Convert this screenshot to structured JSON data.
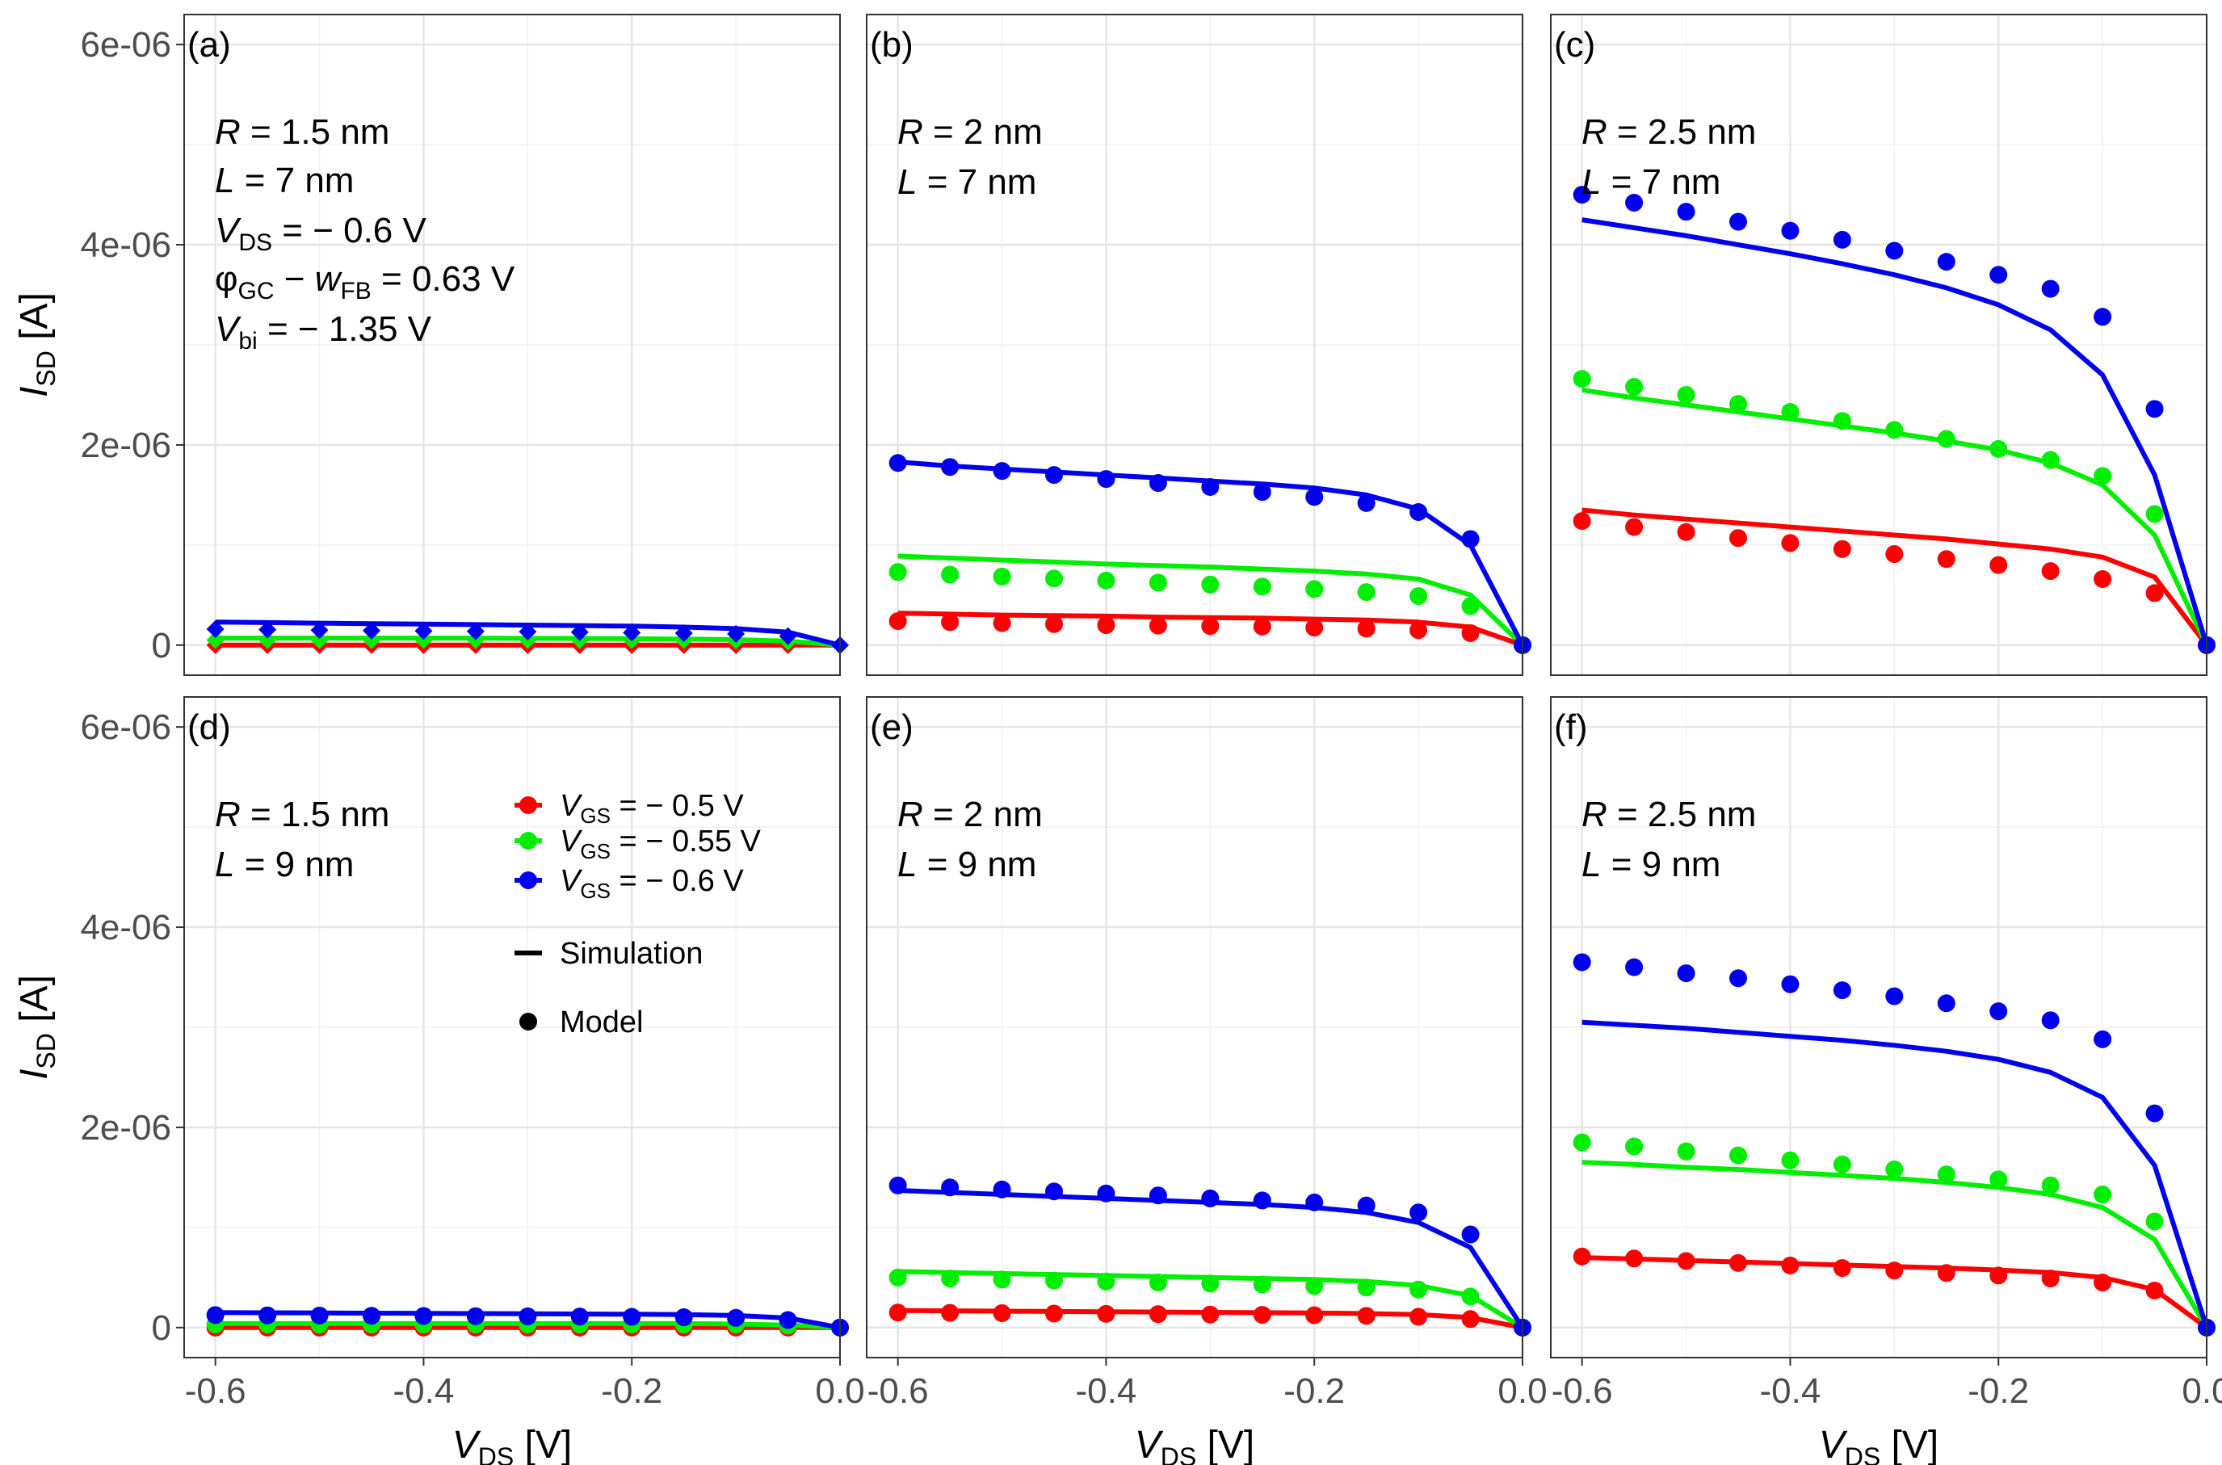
{
  "figure": {
    "x_axis_title": "V",
    "x_axis_sub": "DS",
    "x_axis_unit": " [V]",
    "y_axis_title": "I",
    "y_axis_sub": "SD",
    "y_axis_unit": " [A]",
    "x_ticks": [
      "-0.6",
      "-0.4",
      "-0.2",
      "0.0"
    ],
    "y_ticks": [
      "0",
      "2e-06",
      "4e-06",
      "6e-06"
    ]
  },
  "legend": {
    "entries": [
      {
        "prefix": "V",
        "sub": "GS",
        "label": " = − 0.5 V",
        "color": "#ff0000"
      },
      {
        "prefix": "V",
        "sub": "GS",
        "label": " = − 0.55 V",
        "color": "#00ee00"
      },
      {
        "prefix": "V",
        "sub": "GS",
        "label": " = − 0.6 V",
        "color": "#0000ee"
      }
    ],
    "simulation_label": "Simulation",
    "model_label": "Model"
  },
  "colors": {
    "red": "#ff0000",
    "green": "#00ee00",
    "blue": "#0000ee"
  },
  "chart_data": [
    {
      "panel": "(a)",
      "type": "line",
      "annotations": [
        {
          "sym": "R",
          "sub": "",
          "rest": " = 1.5 nm"
        },
        {
          "sym": "L",
          "sub": "",
          "rest": " = 7 nm"
        },
        {
          "sym": "V",
          "sub": "DS",
          "rest": " = − 0.6 V"
        },
        {
          "sym": "φ",
          "sub": "GC",
          "rest": " − ",
          "sym2": "w",
          "sub2": "FB",
          "rest2": " = 0.63 V"
        },
        {
          "sym": "V",
          "sub": "bi",
          "rest": " = − 1.35 V"
        }
      ],
      "xlim": [
        -0.63,
        0.0
      ],
      "ylim": [
        -3e-07,
        6.3e-06
      ],
      "marker": "diamond",
      "x": [
        -0.6,
        -0.55,
        -0.5,
        -0.45,
        -0.4,
        -0.35,
        -0.3,
        -0.25,
        -0.2,
        -0.15,
        -0.1,
        -0.05,
        0.0
      ],
      "series": [
        {
          "name": "V_GS = -0.5 V",
          "color": "red",
          "simulation": [
            0.0,
            0.0,
            0.0,
            0.0,
            0.0,
            0.0,
            0.0,
            0.0,
            0.0,
            0.0,
            0.0,
            0.0,
            0.0
          ],
          "model": [
            0.0,
            0.0,
            0.0,
            0.0,
            0.0,
            0.0,
            0.0,
            0.0,
            0.0,
            0.0,
            0.0,
            0.0,
            0.0
          ]
        },
        {
          "name": "V_GS = -0.55 V",
          "color": "green",
          "simulation": [
            7e-08,
            7e-08,
            7e-08,
            7e-08,
            7e-08,
            7e-08,
            6.8e-08,
            6.6e-08,
            6.4e-08,
            6e-08,
            5.5e-08,
            4e-08,
            0.0
          ],
          "model": [
            5e-08,
            5e-08,
            5e-08,
            5e-08,
            5e-08,
            5e-08,
            5e-08,
            5e-08,
            5e-08,
            5e-08,
            4.5e-08,
            3.5e-08,
            0.0
          ]
        },
        {
          "name": "V_GS = -0.6 V",
          "color": "blue",
          "simulation": [
            2.3e-07,
            2.25e-07,
            2.2e-07,
            2.15e-07,
            2.1e-07,
            2.05e-07,
            2e-07,
            1.95e-07,
            1.9e-07,
            1.8e-07,
            1.65e-07,
            1.3e-07,
            0.0
          ],
          "model": [
            1.6e-07,
            1.55e-07,
            1.5e-07,
            1.45e-07,
            1.42e-07,
            1.38e-07,
            1.35e-07,
            1.3e-07,
            1.25e-07,
            1.2e-07,
            1.12e-07,
            9e-08,
            0.0
          ]
        }
      ]
    },
    {
      "panel": "(b)",
      "type": "line",
      "annotations": [
        {
          "sym": "R",
          "sub": "",
          "rest": " = 2 nm"
        },
        {
          "sym": "L",
          "sub": "",
          "rest": " = 7 nm"
        }
      ],
      "xlim": [
        -0.63,
        0.0
      ],
      "ylim": [
        -3e-07,
        6.3e-06
      ],
      "marker": "circle",
      "x": [
        -0.6,
        -0.55,
        -0.5,
        -0.45,
        -0.4,
        -0.35,
        -0.3,
        -0.25,
        -0.2,
        -0.15,
        -0.1,
        -0.05,
        0.0
      ],
      "series": [
        {
          "name": "V_GS = -0.5 V",
          "color": "red",
          "simulation": [
            3.2e-07,
            3.1e-07,
            3e-07,
            2.95e-07,
            2.9e-07,
            2.8e-07,
            2.75e-07,
            2.7e-07,
            2.6e-07,
            2.5e-07,
            2.3e-07,
            1.8e-07,
            0.0
          ],
          "model": [
            2.4e-07,
            2.3e-07,
            2.2e-07,
            2.1e-07,
            2e-07,
            1.95e-07,
            1.9e-07,
            1.85e-07,
            1.75e-07,
            1.65e-07,
            1.5e-07,
            1.2e-07,
            0.0
          ]
        },
        {
          "name": "V_GS = -0.55 V",
          "color": "green",
          "simulation": [
            8.9e-07,
            8.7e-07,
            8.5e-07,
            8.3e-07,
            8.1e-07,
            7.95e-07,
            7.8e-07,
            7.6e-07,
            7.4e-07,
            7.1e-07,
            6.6e-07,
            5e-07,
            0.0
          ],
          "model": [
            7.3e-07,
            7.05e-07,
            6.85e-07,
            6.65e-07,
            6.45e-07,
            6.25e-07,
            6.05e-07,
            5.85e-07,
            5.6e-07,
            5.3e-07,
            4.9e-07,
            3.9e-07,
            0.0
          ]
        },
        {
          "name": "V_GS = -0.6 V",
          "color": "blue",
          "simulation": [
            1.83e-06,
            1.79e-06,
            1.76e-06,
            1.73e-06,
            1.7e-06,
            1.67e-06,
            1.64e-06,
            1.61e-06,
            1.57e-06,
            1.5e-06,
            1.36e-06,
            1e-06,
            0.0
          ],
          "model": [
            1.82e-06,
            1.78e-06,
            1.74e-06,
            1.7e-06,
            1.66e-06,
            1.62e-06,
            1.58e-06,
            1.53e-06,
            1.48e-06,
            1.42e-06,
            1.33e-06,
            1.06e-06,
            0.0
          ]
        }
      ]
    },
    {
      "panel": "(c)",
      "type": "line",
      "annotations": [
        {
          "sym": "R",
          "sub": "",
          "rest": " = 2.5 nm"
        },
        {
          "sym": "L",
          "sub": "",
          "rest": " = 7 nm"
        }
      ],
      "xlim": [
        -0.63,
        0.0
      ],
      "ylim": [
        -3e-07,
        6.3e-06
      ],
      "marker": "circle",
      "x": [
        -0.6,
        -0.55,
        -0.5,
        -0.45,
        -0.4,
        -0.35,
        -0.3,
        -0.25,
        -0.2,
        -0.15,
        -0.1,
        -0.05,
        0.0
      ],
      "series": [
        {
          "name": "V_GS = -0.5 V",
          "color": "red",
          "simulation": [
            1.35e-06,
            1.3e-06,
            1.26e-06,
            1.22e-06,
            1.18e-06,
            1.14e-06,
            1.1e-06,
            1.06e-06,
            1.01e-06,
            9.6e-07,
            8.8e-07,
            6.8e-07,
            0.0
          ],
          "model": [
            1.24e-06,
            1.18e-06,
            1.13e-06,
            1.07e-06,
            1.02e-06,
            9.6e-07,
            9.1e-07,
            8.6e-07,
            8e-07,
            7.4e-07,
            6.6e-07,
            5.2e-07,
            0.0
          ]
        },
        {
          "name": "V_GS = -0.55 V",
          "color": "green",
          "simulation": [
            2.55e-06,
            2.47e-06,
            2.4e-06,
            2.33e-06,
            2.26e-06,
            2.19e-06,
            2.12e-06,
            2.04e-06,
            1.95e-06,
            1.82e-06,
            1.6e-06,
            1.1e-06,
            0.0
          ],
          "model": [
            2.66e-06,
            2.58e-06,
            2.5e-06,
            2.41e-06,
            2.33e-06,
            2.24e-06,
            2.15e-06,
            2.06e-06,
            1.96e-06,
            1.85e-06,
            1.69e-06,
            1.31e-06,
            0.0
          ]
        },
        {
          "name": "V_GS = -0.6 V",
          "color": "blue",
          "simulation": [
            4.25e-06,
            4.17e-06,
            4.09e-06,
            4e-06,
            3.91e-06,
            3.81e-06,
            3.7e-06,
            3.57e-06,
            3.4e-06,
            3.15e-06,
            2.7e-06,
            1.7e-06,
            0.0
          ],
          "model": [
            4.5e-06,
            4.42e-06,
            4.33e-06,
            4.23e-06,
            4.14e-06,
            4.05e-06,
            3.94e-06,
            3.83e-06,
            3.7e-06,
            3.56e-06,
            3.28e-06,
            2.36e-06,
            0.0
          ]
        }
      ]
    },
    {
      "panel": "(d)",
      "type": "line",
      "annotations": [
        {
          "sym": "R",
          "sub": "",
          "rest": " = 1.5 nm"
        },
        {
          "sym": "L",
          "sub": "",
          "rest": " = 9 nm"
        }
      ],
      "xlim": [
        -0.63,
        0.0
      ],
      "ylim": [
        -3e-07,
        6.3e-06
      ],
      "marker": "circle",
      "x": [
        -0.6,
        -0.55,
        -0.5,
        -0.45,
        -0.4,
        -0.35,
        -0.3,
        -0.25,
        -0.2,
        -0.15,
        -0.1,
        -0.05,
        0.0
      ],
      "series": [
        {
          "name": "V_GS = -0.5 V",
          "color": "red",
          "simulation": [
            0.0,
            0.0,
            0.0,
            0.0,
            0.0,
            0.0,
            0.0,
            0.0,
            0.0,
            0.0,
            0.0,
            0.0,
            0.0
          ],
          "model": [
            0.0,
            0.0,
            0.0,
            0.0,
            0.0,
            0.0,
            0.0,
            0.0,
            0.0,
            0.0,
            0.0,
            0.0,
            0.0
          ]
        },
        {
          "name": "V_GS = -0.55 V",
          "color": "green",
          "simulation": [
            4e-08,
            4e-08,
            4e-08,
            4e-08,
            4e-08,
            4e-08,
            4e-08,
            4e-08,
            4e-08,
            4e-08,
            3.5e-08,
            2.5e-08,
            0.0
          ],
          "model": [
            3e-08,
            3e-08,
            3e-08,
            3e-08,
            3e-08,
            3e-08,
            3e-08,
            3e-08,
            3e-08,
            3e-08,
            3e-08,
            2e-08,
            0.0
          ]
        },
        {
          "name": "V_GS = -0.6 V",
          "color": "blue",
          "simulation": [
            1.5e-07,
            1.48e-07,
            1.46e-07,
            1.44e-07,
            1.42e-07,
            1.4e-07,
            1.38e-07,
            1.36e-07,
            1.33e-07,
            1.29e-07,
            1.2e-07,
            9.5e-08,
            0.0
          ],
          "model": [
            1.25e-07,
            1.22e-07,
            1.2e-07,
            1.18e-07,
            1.16e-07,
            1.14e-07,
            1.12e-07,
            1.1e-07,
            1.07e-07,
            1.03e-07,
            9.7e-08,
            7.5e-08,
            0.0
          ]
        }
      ]
    },
    {
      "panel": "(e)",
      "type": "line",
      "annotations": [
        {
          "sym": "R",
          "sub": "",
          "rest": " = 2 nm"
        },
        {
          "sym": "L",
          "sub": "",
          "rest": " = 9 nm"
        }
      ],
      "xlim": [
        -0.63,
        0.0
      ],
      "ylim": [
        -3e-07,
        6.3e-06
      ],
      "marker": "circle",
      "x": [
        -0.6,
        -0.55,
        -0.5,
        -0.45,
        -0.4,
        -0.35,
        -0.3,
        -0.25,
        -0.2,
        -0.15,
        -0.1,
        -0.05,
        0.0
      ],
      "series": [
        {
          "name": "V_GS = -0.5 V",
          "color": "red",
          "simulation": [
            1.7e-07,
            1.67e-07,
            1.64e-07,
            1.61e-07,
            1.58e-07,
            1.55e-07,
            1.52e-07,
            1.49e-07,
            1.45e-07,
            1.4e-07,
            1.3e-07,
            1e-07,
            0.0
          ],
          "model": [
            1.5e-07,
            1.47e-07,
            1.44e-07,
            1.4e-07,
            1.37e-07,
            1.34e-07,
            1.3e-07,
            1.27e-07,
            1.23e-07,
            1.17e-07,
            1.08e-07,
            8.5e-08,
            0.0
          ]
        },
        {
          "name": "V_GS = -0.55 V",
          "color": "green",
          "simulation": [
            5.6e-07,
            5.5e-07,
            5.4e-07,
            5.3e-07,
            5.2e-07,
            5.1e-07,
            5e-07,
            4.9e-07,
            4.8e-07,
            4.6e-07,
            4.2e-07,
            3.2e-07,
            0.0
          ],
          "model": [
            5e-07,
            4.9e-07,
            4.8e-07,
            4.7e-07,
            4.6e-07,
            4.5e-07,
            4.4e-07,
            4.3e-07,
            4.15e-07,
            4e-07,
            3.8e-07,
            3.1e-07,
            0.0
          ]
        },
        {
          "name": "V_GS = -0.6 V",
          "color": "blue",
          "simulation": [
            1.37e-06,
            1.35e-06,
            1.33e-06,
            1.31e-06,
            1.29e-06,
            1.27e-06,
            1.25e-06,
            1.23e-06,
            1.2e-06,
            1.15e-06,
            1.05e-06,
            8e-07,
            0.0
          ],
          "model": [
            1.42e-06,
            1.4e-06,
            1.38e-06,
            1.36e-06,
            1.34e-06,
            1.32e-06,
            1.29e-06,
            1.27e-06,
            1.25e-06,
            1.22e-06,
            1.15e-06,
            9.3e-07,
            0.0
          ]
        }
      ]
    },
    {
      "panel": "(f)",
      "type": "line",
      "annotations": [
        {
          "sym": "R",
          "sub": "",
          "rest": " = 2.5 nm"
        },
        {
          "sym": "L",
          "sub": "",
          "rest": " = 9 nm"
        }
      ],
      "xlim": [
        -0.63,
        0.0
      ],
      "ylim": [
        -3e-07,
        6.3e-06
      ],
      "marker": "circle",
      "x": [
        -0.6,
        -0.55,
        -0.5,
        -0.45,
        -0.4,
        -0.35,
        -0.3,
        -0.25,
        -0.2,
        -0.15,
        -0.1,
        -0.05,
        0.0
      ],
      "series": [
        {
          "name": "V_GS = -0.5 V",
          "color": "red",
          "simulation": [
            7e-07,
            6.85e-07,
            6.7e-07,
            6.55e-07,
            6.4e-07,
            6.25e-07,
            6.1e-07,
            5.95e-07,
            5.75e-07,
            5.5e-07,
            5e-07,
            3.8e-07,
            0.0
          ],
          "model": [
            7.1e-07,
            6.9e-07,
            6.65e-07,
            6.45e-07,
            6.2e-07,
            5.95e-07,
            5.7e-07,
            5.45e-07,
            5.2e-07,
            4.9e-07,
            4.5e-07,
            3.7e-07,
            0.0
          ]
        },
        {
          "name": "V_GS = -0.55 V",
          "color": "green",
          "simulation": [
            1.65e-06,
            1.63e-06,
            1.6e-06,
            1.58e-06,
            1.55e-06,
            1.52e-06,
            1.49e-06,
            1.45e-06,
            1.4e-06,
            1.33e-06,
            1.2e-06,
            8.8e-07,
            0.0
          ],
          "model": [
            1.85e-06,
            1.81e-06,
            1.76e-06,
            1.72e-06,
            1.67e-06,
            1.63e-06,
            1.58e-06,
            1.53e-06,
            1.48e-06,
            1.42e-06,
            1.33e-06,
            1.06e-06,
            0.0
          ]
        },
        {
          "name": "V_GS = -0.6 V",
          "color": "blue",
          "simulation": [
            3.05e-06,
            3.02e-06,
            2.99e-06,
            2.95e-06,
            2.91e-06,
            2.87e-06,
            2.82e-06,
            2.76e-06,
            2.68e-06,
            2.55e-06,
            2.3e-06,
            1.62e-06,
            0.0
          ],
          "model": [
            3.65e-06,
            3.6e-06,
            3.54e-06,
            3.49e-06,
            3.43e-06,
            3.37e-06,
            3.31e-06,
            3.24e-06,
            3.16e-06,
            3.07e-06,
            2.88e-06,
            2.14e-06,
            0.0
          ]
        }
      ]
    }
  ]
}
